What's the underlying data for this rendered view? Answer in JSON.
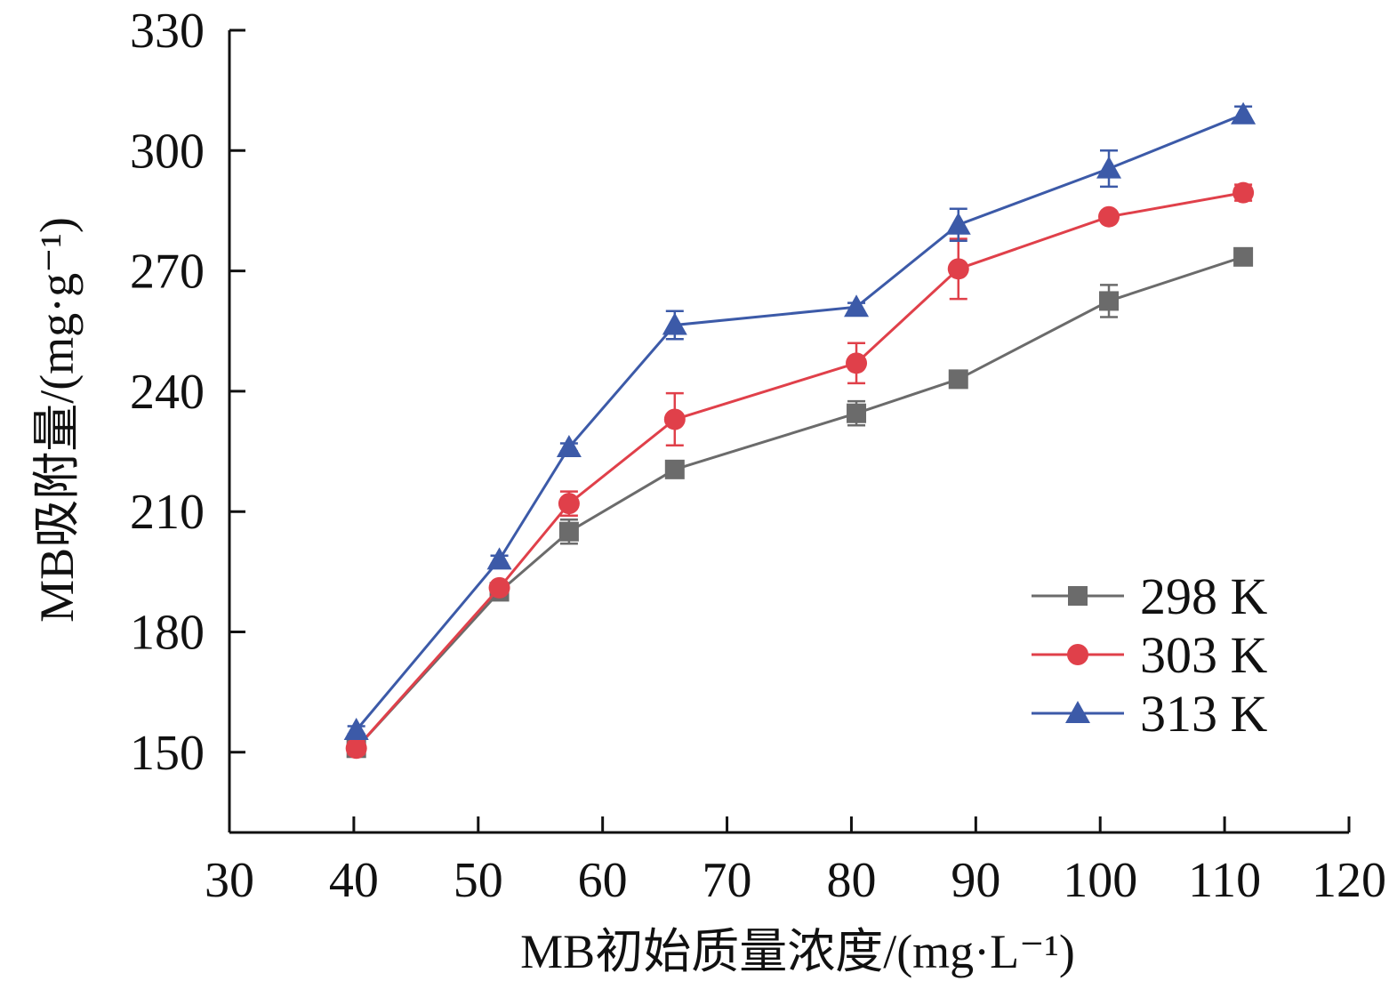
{
  "chart_data": {
    "type": "line",
    "xlabel": "MB初始质量浓度/(mg·L⁻¹)",
    "ylabel": "MB吸附量/(mg·g⁻¹)",
    "xlim": [
      30,
      120
    ],
    "ylim": [
      130,
      330
    ],
    "x_ticks": [
      30,
      40,
      50,
      60,
      70,
      80,
      90,
      100,
      110,
      120
    ],
    "y_ticks": [
      150,
      180,
      210,
      240,
      270,
      300,
      330
    ],
    "grid": false,
    "legend_position": "bottom-right",
    "series": [
      {
        "name": "298 K",
        "color": "#6b6b6b",
        "marker": "square",
        "x": [
          40.2,
          51.7,
          57.3,
          65.8,
          80.4,
          88.6,
          100.7,
          111.5
        ],
        "y": [
          151.0,
          190.0,
          205.0,
          220.5,
          234.5,
          243.0,
          262.5,
          273.5
        ],
        "err": [
          1.5,
          1.0,
          3.0,
          1.0,
          3.0,
          1.5,
          4.0,
          1.0
        ]
      },
      {
        "name": "303 K",
        "color": "#e0404a",
        "marker": "circle",
        "x": [
          40.2,
          51.7,
          57.3,
          65.8,
          80.4,
          88.6,
          100.7,
          111.5
        ],
        "y": [
          151.0,
          191.0,
          212.0,
          233.0,
          247.0,
          270.5,
          283.5,
          289.5
        ],
        "err": [
          1.5,
          1.0,
          3.0,
          6.5,
          5.0,
          7.5,
          1.0,
          2.0
        ]
      },
      {
        "name": "313 K",
        "color": "#3c5aa8",
        "marker": "triangle",
        "x": [
          40.2,
          51.7,
          57.3,
          65.8,
          80.4,
          88.6,
          100.7,
          111.5
        ],
        "y": [
          155.5,
          198.0,
          226.0,
          256.5,
          261.0,
          281.5,
          295.5,
          309.0
        ],
        "err": [
          1.0,
          1.0,
          1.0,
          3.5,
          1.0,
          4.0,
          4.5,
          2.0
        ]
      }
    ]
  }
}
